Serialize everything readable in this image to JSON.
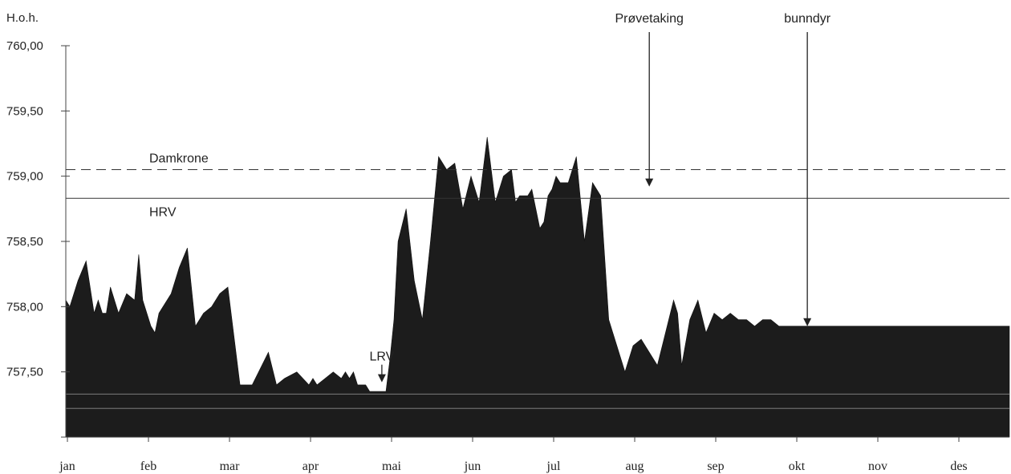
{
  "chart_data": {
    "type": "area",
    "ylabel": "H.o.h.",
    "xlabel": "",
    "title": "",
    "ylim": [
      757.0,
      760.0
    ],
    "yticks": [
      "760,00",
      "759,50",
      "759,00",
      "758,50",
      "758,00",
      "757,50"
    ],
    "ytick_values": [
      760.0,
      759.5,
      759.0,
      758.5,
      758.0,
      757.5
    ],
    "categories": [
      "jan",
      "feb",
      "mar",
      "apr",
      "mai",
      "jun",
      "jul",
      "aug",
      "sep",
      "okt",
      "nov",
      "des"
    ],
    "x": [
      0,
      0.05,
      0.15,
      0.25,
      0.35,
      0.4,
      0.45,
      0.5,
      0.55,
      0.65,
      0.75,
      0.85,
      0.9,
      0.95,
      1.05,
      1.1,
      1.15,
      1.2,
      1.25,
      1.3,
      1.4,
      1.5,
      1.6,
      1.7,
      1.8,
      1.9,
      2.0,
      2.15,
      2.3,
      2.5,
      2.6,
      2.7,
      2.85,
      3.0,
      3.05,
      3.1,
      3.2,
      3.3,
      3.4,
      3.45,
      3.5,
      3.55,
      3.6,
      3.65,
      3.7,
      3.75,
      3.8,
      3.85,
      3.9,
      3.95,
      4.0,
      4.05,
      4.1,
      4.2,
      4.3,
      4.4,
      4.5,
      4.6,
      4.7,
      4.8,
      4.9,
      5.0,
      5.1,
      5.2,
      5.3,
      5.4,
      5.5,
      5.55,
      5.6,
      5.7,
      5.75,
      5.8,
      5.85,
      5.9,
      5.95,
      6.0,
      6.05,
      6.1,
      6.2,
      6.3,
      6.4,
      6.5,
      6.6,
      6.7,
      6.8,
      6.9,
      7.0,
      7.1,
      7.2,
      7.3,
      7.4,
      7.5,
      7.55,
      7.6,
      7.7,
      7.8,
      7.9,
      8.0,
      8.1,
      8.2,
      8.3,
      8.4,
      8.5,
      8.6,
      8.7,
      8.8,
      8.9,
      9.0,
      9.1,
      9.2,
      9.3,
      9.4,
      9.5,
      9.6,
      9.7,
      9.8,
      9.9,
      10.0,
      10.1,
      10.2,
      10.3,
      10.4,
      10.5,
      10.6,
      10.7,
      10.8,
      10.9,
      11.0,
      11.1,
      11.2,
      11.3,
      11.4,
      11.5,
      11.6,
      11.7
    ],
    "series": [
      {
        "values": [
          758.05,
          758.0,
          758.2,
          758.35,
          757.95,
          758.05,
          757.95,
          757.95,
          758.15,
          757.95,
          758.1,
          758.05,
          758.4,
          758.05,
          757.85,
          757.8,
          757.95,
          758.0,
          758.05,
          758.1,
          758.3,
          758.45,
          757.85,
          757.95,
          758.0,
          758.1,
          758.15,
          757.4,
          757.4,
          757.65,
          757.4,
          757.45,
          757.5,
          757.4,
          757.45,
          757.4,
          757.45,
          757.5,
          757.45,
          757.5,
          757.45,
          757.5,
          757.4,
          757.4,
          757.4,
          757.35,
          757.35,
          757.35,
          757.35,
          757.35,
          757.6,
          757.9,
          758.5,
          758.75,
          758.2,
          757.9,
          758.5,
          759.15,
          759.05,
          759.1,
          758.75,
          759.0,
          758.8,
          759.3,
          758.8,
          759.0,
          759.05,
          758.8,
          758.85,
          758.85,
          758.9,
          758.75,
          758.6,
          758.65,
          758.85,
          758.9,
          759.0,
          758.95,
          758.95,
          759.15,
          758.5,
          758.95,
          758.85,
          757.9,
          757.7,
          757.5,
          757.7,
          757.75,
          757.65,
          757.55,
          757.8,
          758.05,
          757.95,
          757.55,
          757.9,
          758.05,
          757.8,
          757.95,
          757.9,
          757.95,
          757.9,
          757.9,
          757.85,
          757.9,
          757.9,
          757.85,
          757.85,
          757.85,
          757.85,
          757.85,
          757.85,
          757.85,
          757.85,
          757.85,
          757.85,
          757.85,
          757.85,
          757.85,
          757.85,
          757.85,
          757.85,
          757.85,
          757.85,
          757.85,
          757.85,
          757.85,
          757.85,
          757.85,
          757.85,
          757.85,
          757.85,
          757.85,
          757.85,
          757.85,
          757.85
        ]
      }
    ],
    "reference_lines": [
      {
        "label": "Damkrone",
        "value": 759.05,
        "style": "dashed"
      },
      {
        "label": "HRV",
        "value": 758.83,
        "style": "solid"
      },
      {
        "label": "",
        "value": 757.33,
        "style": "light"
      },
      {
        "label": "",
        "value": 757.22,
        "style": "light"
      }
    ],
    "annotations": [
      {
        "label": "LRV",
        "x": 3.9,
        "y": 757.42
      },
      {
        "label": "Prøvetaking",
        "x": 7.2,
        "y": 758.92
      },
      {
        "label": "bunndyr",
        "x": 9.15,
        "y": 757.85
      }
    ],
    "grid": false,
    "legend": "none"
  }
}
